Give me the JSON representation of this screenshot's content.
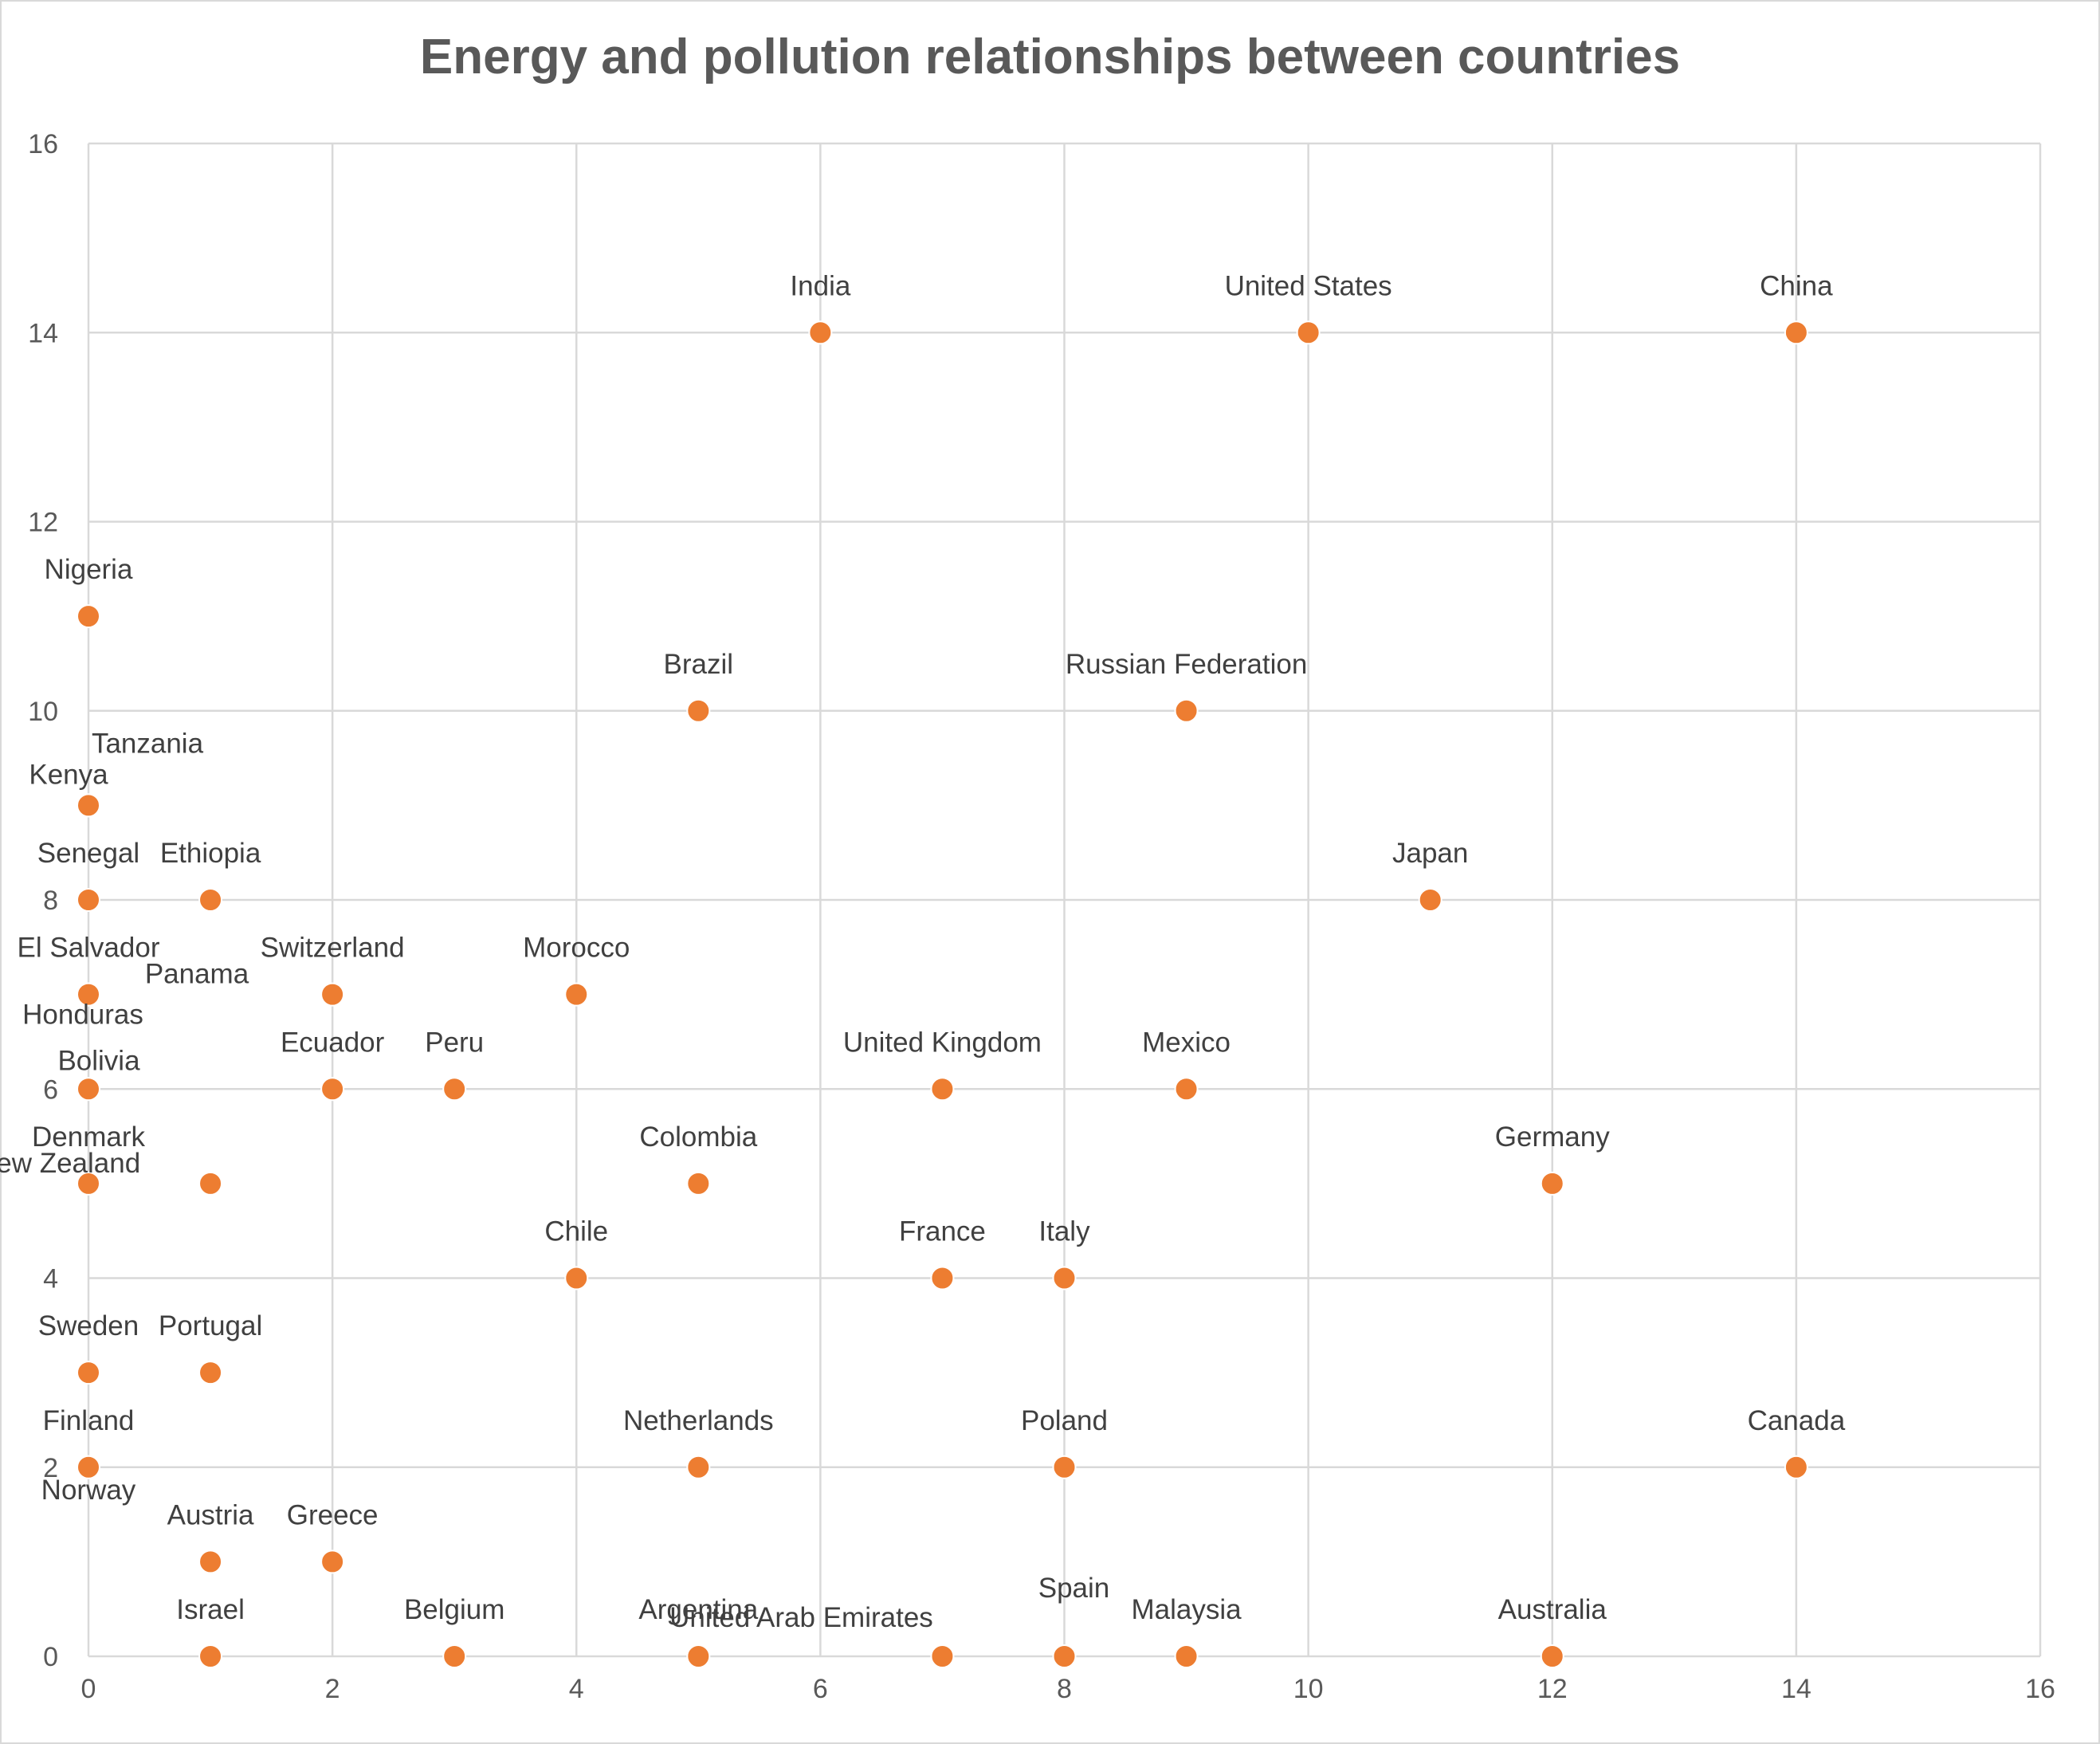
{
  "chart_data": {
    "type": "scatter",
    "title": "Energy and pollution relationships between countries",
    "xlabel": "",
    "ylabel": "",
    "xlim": [
      0,
      16
    ],
    "ylim": [
      0,
      16
    ],
    "x_ticks": [
      0,
      2,
      4,
      6,
      8,
      10,
      12,
      14,
      16
    ],
    "y_ticks": [
      0,
      2,
      4,
      6,
      8,
      10,
      12,
      14,
      16
    ],
    "grid": true,
    "legend": "none",
    "marker_color": "#ed7d31",
    "points": [
      {
        "label": "India",
        "x": 6,
        "y": 14
      },
      {
        "label": "United States",
        "x": 10,
        "y": 14
      },
      {
        "label": "China",
        "x": 14,
        "y": 14
      },
      {
        "label": "Nigeria",
        "x": 0,
        "y": 11
      },
      {
        "label": "Brazil",
        "x": 5,
        "y": 10
      },
      {
        "label": "Russian Federation",
        "x": 9,
        "y": 10
      },
      {
        "label": "Tanzania",
        "x": 0,
        "y": 9
      },
      {
        "label": "Kenya",
        "x": 0,
        "y": 9
      },
      {
        "label": "Senegal",
        "x": 0,
        "y": 8
      },
      {
        "label": "Ethiopia",
        "x": 1,
        "y": 8
      },
      {
        "label": "Japan",
        "x": 11,
        "y": 8
      },
      {
        "label": "El Salvador",
        "x": 0,
        "y": 7
      },
      {
        "label": "Panama",
        "x": 0,
        "y": 7
      },
      {
        "label": "Honduras",
        "x": 0,
        "y": 7
      },
      {
        "label": "Switzerland",
        "x": 2,
        "y": 7
      },
      {
        "label": "Morocco",
        "x": 4,
        "y": 7
      },
      {
        "label": "Bolivia",
        "x": 0,
        "y": 6
      },
      {
        "label": "Ecuador",
        "x": 2,
        "y": 6
      },
      {
        "label": "Peru",
        "x": 3,
        "y": 6
      },
      {
        "label": "United Kingdom",
        "x": 7,
        "y": 6
      },
      {
        "label": "Mexico",
        "x": 9,
        "y": 6
      },
      {
        "label": "Denmark",
        "x": 0,
        "y": 5
      },
      {
        "label": "New Zealand",
        "x": 1,
        "y": 5
      },
      {
        "label": "Colombia",
        "x": 5,
        "y": 5
      },
      {
        "label": "Germany",
        "x": 12,
        "y": 5
      },
      {
        "label": "Chile",
        "x": 4,
        "y": 4
      },
      {
        "label": "France",
        "x": 7,
        "y": 4
      },
      {
        "label": "Italy",
        "x": 8,
        "y": 4
      },
      {
        "label": "Sweden",
        "x": 0,
        "y": 3
      },
      {
        "label": "Portugal",
        "x": 1,
        "y": 3
      },
      {
        "label": "Finland",
        "x": 0,
        "y": 2
      },
      {
        "label": "Norway",
        "x": 0,
        "y": 2
      },
      {
        "label": "Netherlands",
        "x": 5,
        "y": 2
      },
      {
        "label": "Poland",
        "x": 8,
        "y": 2
      },
      {
        "label": "Canada",
        "x": 14,
        "y": 2
      },
      {
        "label": "Austria",
        "x": 1,
        "y": 1
      },
      {
        "label": "Greece",
        "x": 2,
        "y": 1
      },
      {
        "label": "Israel",
        "x": 1,
        "y": 0
      },
      {
        "label": "Belgium",
        "x": 3,
        "y": 0
      },
      {
        "label": "Argentina",
        "x": 5,
        "y": 0
      },
      {
        "label": "United Arab Emirates",
        "x": 7,
        "y": 0
      },
      {
        "label": "Spain",
        "x": 8,
        "y": 0
      },
      {
        "label": "Malaysia",
        "x": 9,
        "y": 0
      },
      {
        "label": "Australia",
        "x": 12,
        "y": 0
      }
    ]
  }
}
